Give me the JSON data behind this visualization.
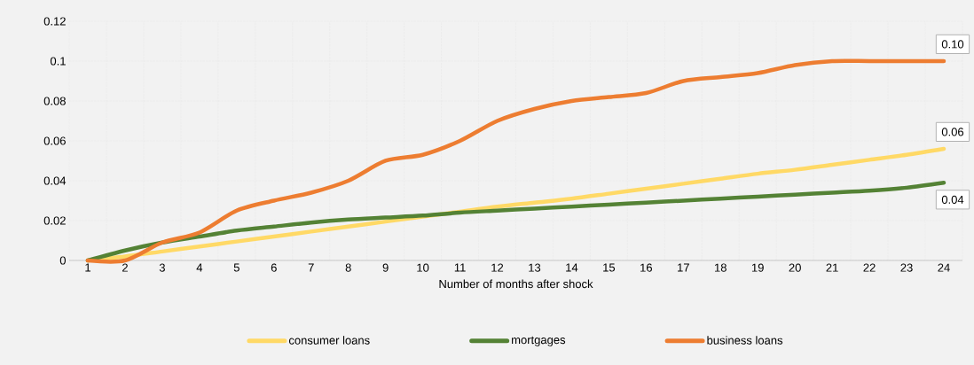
{
  "chart_data": {
    "type": "line",
    "xlabel": "Number of months after shock",
    "categories": [
      "1",
      "2",
      "3",
      "4",
      "5",
      "6",
      "7",
      "8",
      "9",
      "10",
      "11",
      "12",
      "13",
      "14",
      "15",
      "16",
      "17",
      "18",
      "19",
      "20",
      "21",
      "22",
      "23",
      "24"
    ],
    "series": [
      {
        "name": "consumer loans",
        "color": "#ffd966",
        "values": [
          0,
          0.002,
          0.0045,
          0.007,
          0.0095,
          0.012,
          0.0145,
          0.017,
          0.0195,
          0.022,
          0.0245,
          0.027,
          0.029,
          0.031,
          0.0335,
          0.036,
          0.0385,
          0.041,
          0.0435,
          0.0455,
          0.048,
          0.0505,
          0.053,
          0.056
        ],
        "value_labels": [
          null,
          null,
          null,
          null,
          null,
          null,
          null,
          null,
          null,
          null,
          null,
          null,
          null,
          null,
          null,
          null,
          null,
          null,
          null,
          null,
          null,
          null,
          null,
          "0.06"
        ]
      },
      {
        "name": "mortgages",
        "color": "#548235",
        "values": [
          0,
          0.005,
          0.009,
          0.012,
          0.015,
          0.017,
          0.019,
          0.0205,
          0.0215,
          0.0225,
          0.024,
          0.025,
          0.026,
          0.027,
          0.028,
          0.029,
          0.03,
          0.031,
          0.032,
          0.033,
          0.034,
          0.035,
          0.0365,
          0.039
        ],
        "value_labels": [
          null,
          null,
          null,
          null,
          null,
          null,
          null,
          null,
          null,
          null,
          null,
          null,
          null,
          null,
          null,
          null,
          null,
          null,
          null,
          null,
          null,
          null,
          null,
          "0.04"
        ]
      },
      {
        "name": "business loans",
        "color": "#ed7d31",
        "values": [
          0,
          0,
          0.009,
          0.014,
          0.025,
          0.03,
          0.034,
          0.04,
          0.05,
          0.053,
          0.06,
          0.07,
          0.076,
          0.08,
          0.082,
          0.084,
          0.09,
          0.092,
          0.094,
          0.098,
          0.1,
          0.1,
          0.1,
          0.1
        ],
        "value_labels": [
          null,
          null,
          null,
          null,
          null,
          null,
          null,
          null,
          null,
          null,
          null,
          null,
          null,
          null,
          null,
          null,
          null,
          null,
          null,
          null,
          null,
          null,
          null,
          "0.10"
        ]
      }
    ],
    "ylim": [
      0,
      0.12
    ],
    "yticks": [
      0,
      0.02,
      0.04,
      0.06,
      0.08,
      0.1,
      0.12
    ],
    "grid": true,
    "legend": "bottom",
    "marker": "none",
    "line_style": "solid"
  }
}
